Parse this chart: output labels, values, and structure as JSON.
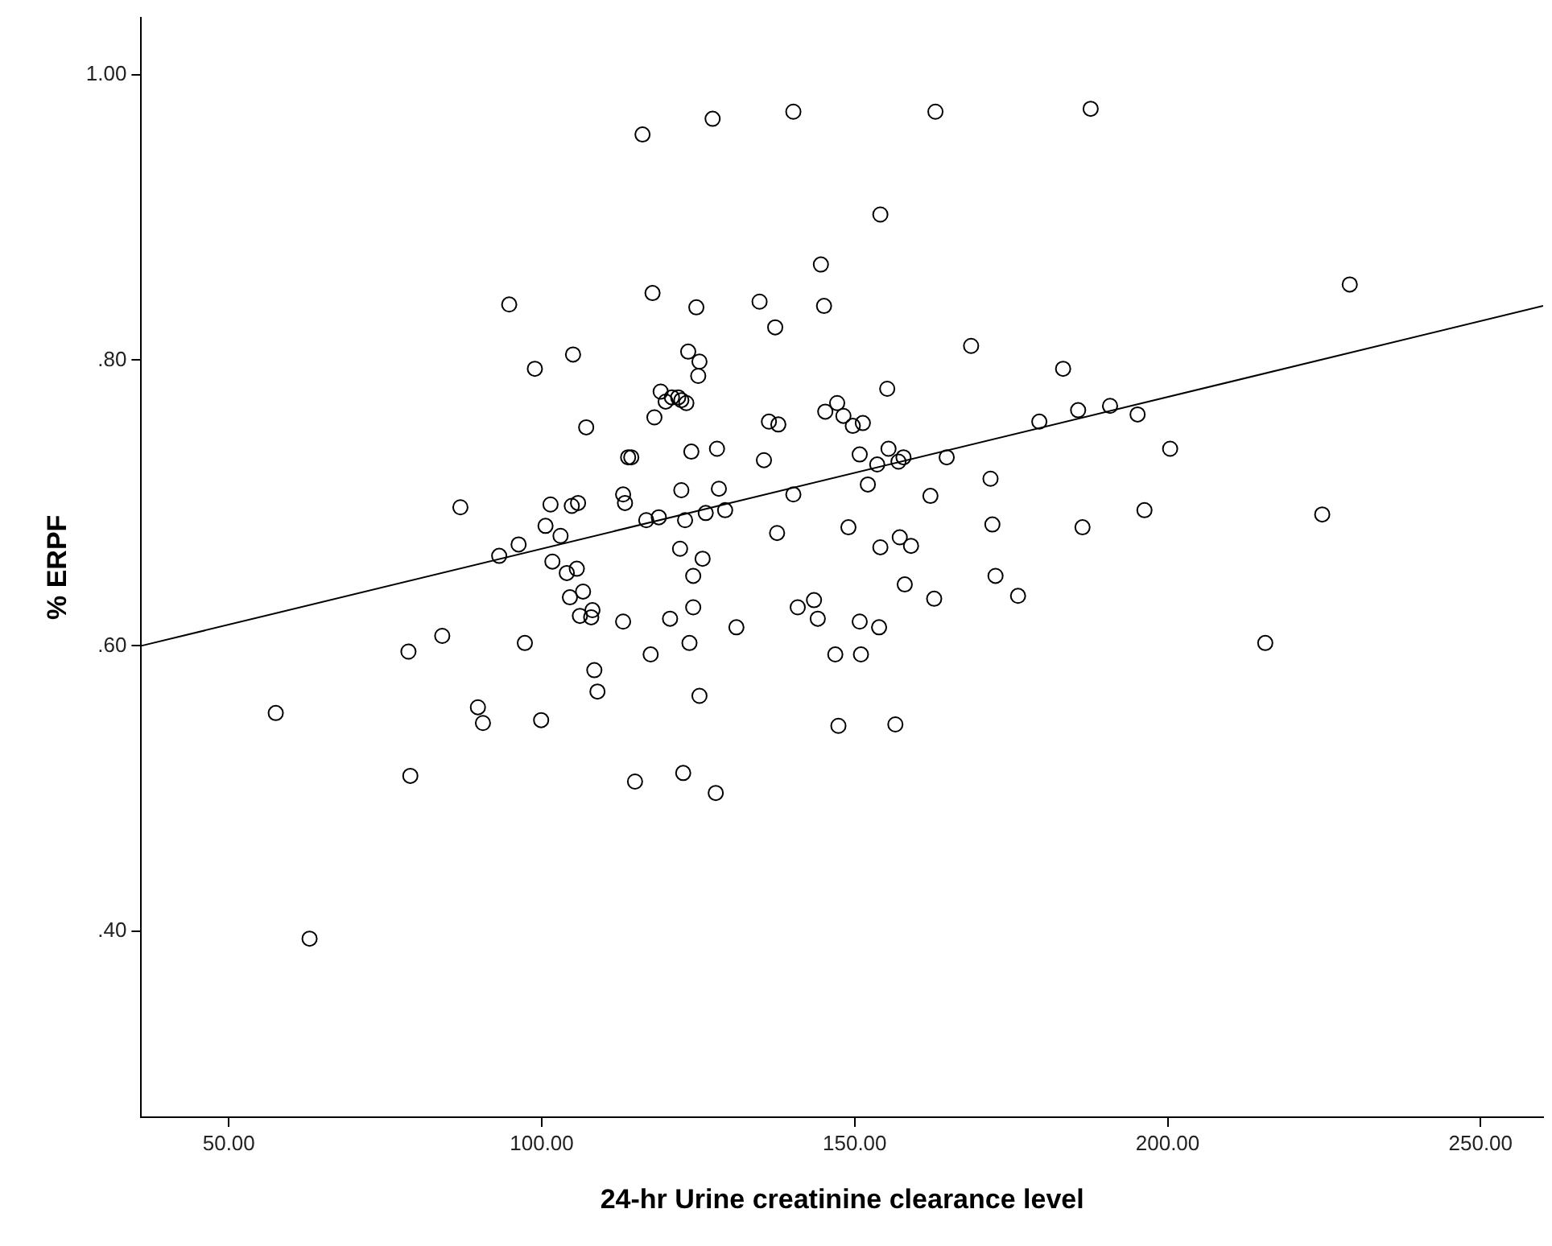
{
  "chart_data": {
    "type": "scatter",
    "xlabel": "24-hr Urine creatinine clearance level",
    "ylabel": "% ERPF",
    "xlim": [
      36,
      260
    ],
    "xticks": [
      {
        "value": 50,
        "label": "50.00"
      },
      {
        "value": 100,
        "label": "100.00"
      },
      {
        "value": 150,
        "label": "150.00"
      },
      {
        "value": 200,
        "label": "200.00"
      },
      {
        "value": 250,
        "label": "250.00"
      }
    ],
    "ylim": [
      0.27,
      1.04
    ],
    "yticks": [
      {
        "value": 0.4,
        "label": ".40"
      },
      {
        "value": 0.6,
        "label": ".60"
      },
      {
        "value": 0.8,
        "label": ".80"
      },
      {
        "value": 1.0,
        "label": "1.00"
      }
    ],
    "grid": false,
    "legend": false,
    "marker": "circle",
    "series": [
      {
        "color": "#000000",
        "x": [
          57.5,
          62.9,
          78.7,
          79.0,
          84.1,
          87.0,
          89.8,
          90.6,
          93.2,
          94.8,
          96.3,
          97.3,
          98.9,
          99.9,
          100.6,
          101.4,
          101.7,
          103.0,
          104.0,
          104.5,
          104.8,
          105.0,
          105.6,
          105.8,
          106.1,
          106.6,
          107.1,
          107.9,
          108.1,
          108.4,
          108.9,
          113.0,
          113.0,
          113.3,
          113.8,
          114.3,
          114.9,
          116.1,
          116.7,
          117.4,
          117.7,
          118.0,
          118.7,
          119.0,
          119.8,
          120.5,
          120.8,
          121.8,
          122.1,
          122.3,
          122.3,
          122.6,
          122.9,
          123.1,
          123.4,
          123.6,
          123.9,
          124.2,
          124.2,
          124.7,
          125.0,
          125.2,
          125.2,
          125.7,
          126.2,
          127.3,
          127.8,
          128.0,
          128.3,
          129.3,
          131.1,
          134.8,
          135.5,
          136.3,
          137.3,
          137.6,
          137.8,
          140.2,
          140.2,
          140.9,
          143.5,
          144.1,
          144.6,
          145.1,
          145.3,
          146.9,
          147.2,
          147.4,
          148.2,
          149.0,
          149.7,
          150.8,
          150.8,
          151.0,
          151.3,
          152.1,
          153.6,
          154.1,
          154.1,
          153.9,
          155.2,
          155.4,
          156.5,
          157.0,
          157.2,
          157.8,
          158.0,
          159.0,
          162.1,
          162.7,
          162.9,
          164.7,
          168.6,
          171.7,
          172.0,
          172.5,
          176.1,
          179.5,
          183.3,
          185.7,
          186.4,
          187.7,
          190.8,
          195.2,
          196.3,
          200.4,
          215.6,
          224.7,
          229.1
        ],
        "values": [
          0.553,
          0.395,
          0.596,
          0.509,
          0.607,
          0.697,
          0.557,
          0.546,
          0.663,
          0.839,
          0.671,
          0.602,
          0.794,
          0.548,
          0.684,
          0.699,
          0.659,
          0.677,
          0.651,
          0.634,
          0.698,
          0.804,
          0.654,
          0.7,
          0.621,
          0.638,
          0.753,
          0.62,
          0.625,
          0.583,
          0.568,
          0.617,
          0.706,
          0.7,
          0.732,
          0.732,
          0.505,
          0.958,
          0.688,
          0.594,
          0.847,
          0.76,
          0.69,
          0.778,
          0.771,
          0.619,
          0.774,
          0.774,
          0.668,
          0.772,
          0.709,
          0.511,
          0.688,
          0.77,
          0.806,
          0.602,
          0.736,
          0.627,
          0.649,
          0.837,
          0.789,
          0.799,
          0.565,
          0.661,
          0.693,
          0.969,
          0.497,
          0.738,
          0.71,
          0.695,
          0.613,
          0.841,
          0.73,
          0.757,
          0.823,
          0.679,
          0.755,
          0.974,
          0.706,
          0.627,
          0.632,
          0.619,
          0.867,
          0.838,
          0.764,
          0.594,
          0.77,
          0.544,
          0.761,
          0.683,
          0.754,
          0.734,
          0.617,
          0.594,
          0.756,
          0.713,
          0.727,
          0.902,
          0.669,
          0.613,
          0.78,
          0.738,
          0.545,
          0.729,
          0.676,
          0.732,
          0.643,
          0.67,
          0.705,
          0.633,
          0.974,
          0.732,
          0.81,
          0.717,
          0.685,
          0.649,
          0.635,
          0.757,
          0.794,
          0.765,
          0.683,
          0.976,
          0.768,
          0.762,
          0.695,
          0.738,
          0.602,
          0.692,
          0.853
        ]
      },
      {
        "type": "line",
        "color": "#000000",
        "marker": "none",
        "x": [
          36,
          260
        ],
        "values": [
          0.6,
          0.838
        ]
      }
    ]
  }
}
